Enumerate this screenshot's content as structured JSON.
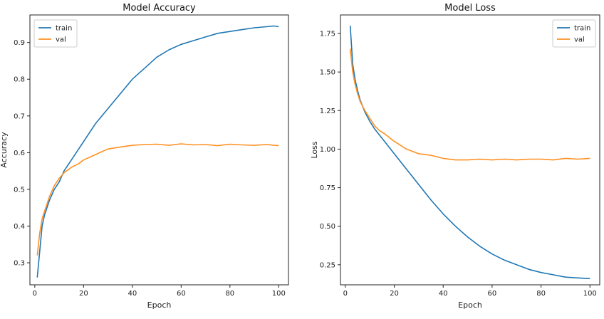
{
  "chart_data": [
    {
      "type": "line",
      "title": "Model Accuracy",
      "xlabel": "Epoch",
      "ylabel": "Accuracy",
      "xlim": [
        -2,
        104
      ],
      "ylim": [
        0.24,
        0.975
      ],
      "xticks": [
        0,
        20,
        40,
        60,
        80,
        100
      ],
      "yticks": [
        0.3,
        0.4,
        0.5,
        0.6,
        0.7,
        0.8,
        0.9
      ],
      "ytick_labels": [
        "0.3",
        "0.4",
        "0.5",
        "0.6",
        "0.7",
        "0.8",
        "0.9"
      ],
      "legend_position": "top-left",
      "series": [
        {
          "name": "train",
          "color": "#1f77b4",
          "x": [
            1,
            2,
            3,
            4,
            6,
            8,
            10,
            12,
            15,
            20,
            25,
            30,
            35,
            40,
            45,
            50,
            55,
            60,
            65,
            70,
            75,
            80,
            85,
            90,
            95,
            98,
            100
          ],
          "y": [
            0.26,
            0.33,
            0.4,
            0.43,
            0.47,
            0.5,
            0.52,
            0.55,
            0.58,
            0.63,
            0.68,
            0.72,
            0.76,
            0.8,
            0.83,
            0.86,
            0.88,
            0.895,
            0.905,
            0.915,
            0.925,
            0.93,
            0.935,
            0.94,
            0.943,
            0.945,
            0.943
          ]
        },
        {
          "name": "val",
          "color": "#ff9022",
          "x": [
            1,
            2,
            3,
            4,
            6,
            8,
            10,
            12,
            15,
            18,
            20,
            25,
            30,
            35,
            40,
            45,
            50,
            55,
            60,
            65,
            70,
            75,
            80,
            85,
            90,
            95,
            100
          ],
          "y": [
            0.32,
            0.38,
            0.42,
            0.44,
            0.48,
            0.51,
            0.53,
            0.545,
            0.56,
            0.57,
            0.58,
            0.595,
            0.61,
            0.615,
            0.62,
            0.622,
            0.623,
            0.62,
            0.624,
            0.621,
            0.622,
            0.619,
            0.623,
            0.621,
            0.62,
            0.622,
            0.619
          ]
        }
      ]
    },
    {
      "type": "line",
      "title": "Model Loss",
      "xlabel": "Epoch",
      "ylabel": "Loss",
      "xlim": [
        -2,
        104
      ],
      "ylim": [
        0.12,
        1.87
      ],
      "xticks": [
        0,
        20,
        40,
        60,
        80,
        100
      ],
      "yticks": [
        0.25,
        0.5,
        0.75,
        1.0,
        1.25,
        1.5,
        1.75
      ],
      "ytick_labels": [
        "0.25",
        "0.50",
        "0.75",
        "1.00",
        "1.25",
        "1.50",
        "1.75"
      ],
      "legend_position": "top-right",
      "series": [
        {
          "name": "train",
          "color": "#1f77b4",
          "x": [
            2,
            3,
            4,
            5,
            6,
            8,
            10,
            12,
            15,
            18,
            20,
            25,
            30,
            35,
            40,
            45,
            50,
            55,
            60,
            65,
            70,
            75,
            80,
            85,
            90,
            95,
            100
          ],
          "y": [
            1.8,
            1.55,
            1.45,
            1.38,
            1.32,
            1.24,
            1.18,
            1.13,
            1.07,
            1.01,
            0.97,
            0.87,
            0.77,
            0.67,
            0.58,
            0.5,
            0.43,
            0.37,
            0.32,
            0.28,
            0.25,
            0.22,
            0.2,
            0.185,
            0.17,
            0.165,
            0.16
          ]
        },
        {
          "name": "val",
          "color": "#ff9022",
          "x": [
            2,
            3,
            4,
            5,
            6,
            8,
            10,
            12,
            14,
            16,
            20,
            25,
            30,
            35,
            40,
            45,
            50,
            55,
            60,
            65,
            70,
            75,
            80,
            85,
            90,
            95,
            100
          ],
          "y": [
            1.65,
            1.5,
            1.42,
            1.36,
            1.31,
            1.25,
            1.2,
            1.15,
            1.12,
            1.1,
            1.05,
            1.0,
            0.97,
            0.96,
            0.94,
            0.93,
            0.93,
            0.935,
            0.93,
            0.935,
            0.93,
            0.935,
            0.935,
            0.93,
            0.94,
            0.935,
            0.94
          ]
        }
      ]
    }
  ]
}
